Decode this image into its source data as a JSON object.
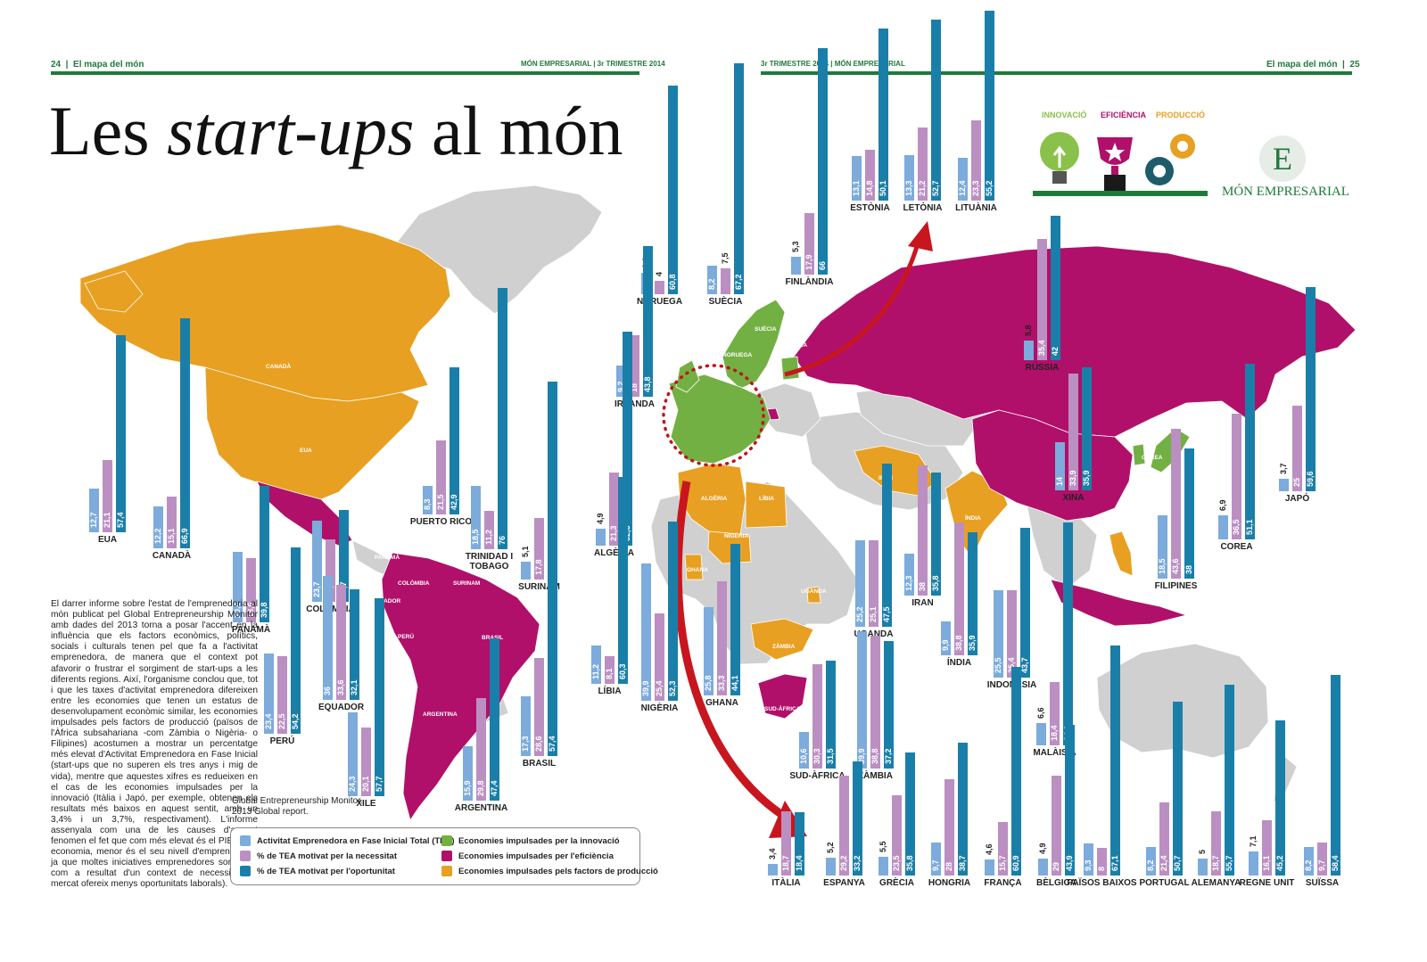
{
  "header": {
    "left_page": "24",
    "left_section": "El mapa del món",
    "left_pub": "MÓN EMPRESARIAL | 3r TRIMESTRE 2014",
    "right_pub": "3r TRIMESTRE 2014 | MÓN EMPRESARIAL",
    "right_section": "El mapa del món",
    "right_page": "25"
  },
  "title": {
    "pre": "Les ",
    "italic": "start-ups",
    "post": " al món"
  },
  "icons": {
    "innovation": "INNOVACIÓ",
    "efficiency": "EFICIÈNCIA",
    "production": "PRODUCCIÓ"
  },
  "brand": {
    "letter": "E",
    "name": "MÓN EMPRESARIAL"
  },
  "colors": {
    "tea": "#7cabdc",
    "necessity": "#bb8fc2",
    "opportunity": "#1a7fa8",
    "innovation": "#72b043",
    "efficiency": "#b0106a",
    "production": "#e8a022",
    "other": "#d0d0d0",
    "accent": "#1f7a3a"
  },
  "article": "El darrer informe sobre l'estat de l'emprenedoria al món publicat pel Global Entrepreneurship Monitor amb dades del 2013 torna a posar l'accent en la influència que els factors econòmics, polítics, socials i culturals tenen pel que fa a l'activitat emprenedora, de manera que el context pot afavorir o frustrar el sorgiment de start-ups a les diferents regions. Així, l'organisme conclou que, tot i que les taxes d'activitat emprenedora difereixen entre les economies que tenen un estatus de desenvolupament econòmic similar, les economies impulsades pels factors de producció (països de l'Àfrica subsahariana -com Zàmbia o Nigèria- o Filipines) acostumen a mostrar un percentatge més elevat d'Activitat Emprenedora en Fase Inicial (start-ups que no superen els tres anys i mig de vida), mentre que aquestes xifres es redueixen en el cas de les economies impulsades per la innovació (Itàlia i Japó, per exemple, obtenen els resultats més baixos en aquest sentit, amb un 3,4% i un 3,7%, respectivament). L'informe assenyala com una de les causes d'aquest fenomen el fet que com més elevat és el PIB d'una economia, menor és el seu nivell d'emprenedoria, ja que moltes iniciatives emprenedores sorgeixen com a resultat d'un context de necessitat (el mercat ofereix menys oportunitats laborals).",
  "source": [
    "Global Entrepreneurship Monitor.",
    "2013 Global report."
  ],
  "legend": [
    {
      "label": "Activitat Emprenedora en Fase Inicial Total (TEA)",
      "color": "#7cabdc"
    },
    {
      "label": "% de TEA motivat per la necessitat",
      "color": "#bb8fc2"
    },
    {
      "label": "% de TEA motivat per l'oportunitat",
      "color": "#1a7fa8"
    },
    {
      "label": "Economies impulsades per la innovació",
      "color": "#72b043"
    },
    {
      "label": "Economies impulsades per l'eficiència",
      "color": "#b0106a"
    },
    {
      "label": "Economies impulsades pels factors de producció",
      "color": "#e8a022"
    }
  ],
  "map_labels": [
    "CANADÀ",
    "EUA",
    "PANAMÀ",
    "COLÒMBIA",
    "SURINAM",
    "EQUADOR",
    "PERÚ",
    "BRASIL",
    "XILE",
    "ARGENTINA",
    "SUÈCIA",
    "NORUEGA",
    "FINLÀNDIA",
    "ALGÈRIA",
    "LÍBIA",
    "NIGÈRIA",
    "GHANA",
    "UGANDA",
    "ZÀMBIA",
    "SUD-ÀFRICA",
    "IRAN",
    "ÍNDIA",
    "COREA",
    "JAPÓ"
  ],
  "chart_data": {
    "type": "bar",
    "series": [
      {
        "name": "Activitat Emprenedora en Fase Inicial Total (TEA)"
      },
      {
        "name": "% de TEA motivat per la necessitat"
      },
      {
        "name": "% de TEA motivat per l'oportunitat"
      }
    ],
    "countries": [
      {
        "name": "EUA",
        "values": [
          12.7,
          21.1,
          57.4
        ],
        "labels": [
          "12,7",
          "21,1",
          "57,4"
        ]
      },
      {
        "name": "CANADÀ",
        "values": [
          12.2,
          15.1,
          66.9
        ],
        "labels": [
          "12,2",
          "15,1",
          "66,9"
        ]
      },
      {
        "name": "PUERTO RICO",
        "values": [
          8.3,
          21.5,
          42.9
        ],
        "labels": [
          "8,3",
          "21,5",
          "42,9"
        ]
      },
      {
        "name": "TRINIDAD I TOBAGO",
        "values": [
          18.5,
          11.2,
          76
        ],
        "labels": [
          "18,5",
          "11,2",
          "76"
        ]
      },
      {
        "name": "SURINAM",
        "values": [
          5.1,
          17.8,
          57.6
        ],
        "labels": [
          "5,1",
          "17,8",
          "57,6"
        ]
      },
      {
        "name": "PANAMÀ",
        "values": [
          20.6,
          18.6,
          39.8
        ],
        "labels": [
          "20,6",
          "18,6",
          "39,8"
        ]
      },
      {
        "name": "COLÒMBIA",
        "values": [
          23.7,
          18.1,
          26.7
        ],
        "labels": [
          "23,7",
          "18,1",
          "26,7"
        ]
      },
      {
        "name": "EQUADOR",
        "values": [
          36,
          33.6,
          32.1
        ],
        "labels": [
          "36",
          "33,6",
          "32,1"
        ]
      },
      {
        "name": "PERÚ",
        "values": [
          23.4,
          22.5,
          54.2
        ],
        "labels": [
          "23,4",
          "22,5",
          "54,2"
        ]
      },
      {
        "name": "BRASIL",
        "values": [
          17.3,
          28.6,
          57.4
        ],
        "labels": [
          "17,3",
          "28,6",
          "57,4"
        ]
      },
      {
        "name": "XILE",
        "values": [
          24.3,
          20.1,
          57.7
        ],
        "labels": [
          "24,3",
          "20,1",
          "57,7"
        ]
      },
      {
        "name": "ARGENTINA",
        "values": [
          15.9,
          29.8,
          47.4
        ],
        "labels": [
          "15,9",
          "29,8",
          "47,4"
        ]
      },
      {
        "name": "NORUEGA",
        "values": [
          6.3,
          4,
          60.8
        ],
        "labels": [
          "6,3",
          "4",
          "60,8"
        ]
      },
      {
        "name": "SUÈCIA",
        "values": [
          8.2,
          7.5,
          67.2
        ],
        "labels": [
          "8,2",
          "7,5",
          "67,2"
        ]
      },
      {
        "name": "FINLÀNDIA",
        "values": [
          5.3,
          17.9,
          66
        ],
        "labels": [
          "5,3",
          "17,9",
          "66"
        ]
      },
      {
        "name": "ESTÒNIA",
        "values": [
          13.1,
          14.8,
          50.1
        ],
        "labels": [
          "13,1",
          "14,8",
          "50,1"
        ]
      },
      {
        "name": "LETÒNIA",
        "values": [
          13.3,
          21.2,
          52.7
        ],
        "labels": [
          "13,3",
          "21,2",
          "52,7"
        ]
      },
      {
        "name": "LITUÀNIA",
        "values": [
          12.4,
          23.3,
          55.2
        ],
        "labels": [
          "12,4",
          "23,3",
          "55,2"
        ]
      },
      {
        "name": "IRLANDA",
        "values": [
          9.2,
          18,
          43.8
        ],
        "labels": [
          "9,2",
          "18",
          "43,8"
        ]
      },
      {
        "name": "RÚSSIA",
        "values": [
          5.8,
          35.4,
          42
        ],
        "labels": [
          "5,8",
          "35,4",
          "42"
        ]
      },
      {
        "name": "ALGÈRIA",
        "values": [
          4.9,
          21.3,
          62.3
        ],
        "labels": [
          "4,9",
          "21,3",
          "62,3"
        ]
      },
      {
        "name": "LÍBIA",
        "values": [
          11.2,
          8.1,
          60.3
        ],
        "labels": [
          "11,2",
          "8,1",
          "60,3"
        ]
      },
      {
        "name": "NIGÈRIA",
        "values": [
          39.9,
          25.4,
          52.3
        ],
        "labels": [
          "39,9",
          "25,4",
          "52,3"
        ]
      },
      {
        "name": "GHANA",
        "values": [
          25.8,
          33.3,
          44.1
        ],
        "labels": [
          "25,8",
          "33,3",
          "44,1"
        ]
      },
      {
        "name": "UGANDA",
        "values": [
          25.2,
          25.1,
          47.5
        ],
        "labels": [
          "25,2",
          "25,1",
          "47,5"
        ]
      },
      {
        "name": "IRAN",
        "values": [
          12.3,
          38,
          35.8
        ],
        "labels": [
          "12,3",
          "38",
          "35,8"
        ]
      },
      {
        "name": "ÍNDIA",
        "values": [
          9.9,
          38.8,
          35.9
        ],
        "labels": [
          "9,9",
          "38,8",
          "35,9"
        ]
      },
      {
        "name": "INDONÈSIA",
        "values": [
          25.5,
          25.4,
          43.7
        ],
        "labels": [
          "25,5",
          "25,4",
          "43,7"
        ]
      },
      {
        "name": "XINA",
        "values": [
          14,
          33.9,
          35.9
        ],
        "labels": [
          "14",
          "33,9",
          "35,9"
        ]
      },
      {
        "name": "FILIPINES",
        "values": [
          18.5,
          43.6,
          38
        ],
        "labels": [
          "18,5",
          "43,6",
          "38"
        ]
      },
      {
        "name": "COREA",
        "values": [
          6.9,
          36.5,
          51.1
        ],
        "labels": [
          "6,9",
          "36,5",
          "51,1"
        ]
      },
      {
        "name": "JAPÓ",
        "values": [
          3.7,
          25,
          59.6
        ],
        "labels": [
          "3,7",
          "25",
          "59,6"
        ]
      },
      {
        "name": "MALÀISIA",
        "values": [
          6.6,
          18.4,
          64.9
        ],
        "labels": [
          "6,6",
          "18,4",
          "64,9"
        ]
      },
      {
        "name": "SUD-ÀFRICA",
        "values": [
          10.6,
          30.3,
          31.5
        ],
        "labels": [
          "10,6",
          "30,3",
          "31,5"
        ]
      },
      {
        "name": "ZÀMBIA",
        "values": [
          39.9,
          38.8,
          37.2
        ],
        "labels": [
          "39,9",
          "38,8",
          "37,2"
        ]
      },
      {
        "name": "ITÀLIA",
        "values": [
          3.4,
          18.7,
          18.4
        ],
        "labels": [
          "3,4",
          "18,7",
          "18,4"
        ]
      },
      {
        "name": "ESPANYA",
        "values": [
          5.2,
          29.2,
          33.2
        ],
        "labels": [
          "5,2",
          "29,2",
          "33,2"
        ]
      },
      {
        "name": "GRÈCIA",
        "values": [
          5.5,
          23.5,
          35.8
        ],
        "labels": [
          "5,5",
          "23,5",
          "35,8"
        ]
      },
      {
        "name": "HONGRIA",
        "values": [
          9.7,
          28,
          38.7
        ],
        "labels": [
          "9,7",
          "28",
          "38,7"
        ]
      },
      {
        "name": "FRANÇA",
        "values": [
          4.6,
          15.7,
          60.9
        ],
        "labels": [
          "4,6",
          "15,7",
          "60,9"
        ]
      },
      {
        "name": "BÈLGICA",
        "values": [
          4.9,
          29,
          43.9
        ],
        "labels": [
          "4,9",
          "29",
          "43,9"
        ]
      },
      {
        "name": "PAÏSOS BAIXOS",
        "values": [
          9.3,
          8,
          67.1
        ],
        "labels": [
          "9,3",
          "8",
          "67,1"
        ]
      },
      {
        "name": "PORTUGAL",
        "values": [
          8.2,
          21.4,
          50.7
        ],
        "labels": [
          "8,2",
          "21,4",
          "50,7"
        ]
      },
      {
        "name": "ALEMANYA",
        "values": [
          5,
          18.7,
          55.7
        ],
        "labels": [
          "5",
          "18,7",
          "55,7"
        ]
      },
      {
        "name": "REGNE UNIT",
        "values": [
          7.1,
          16.1,
          45.2
        ],
        "labels": [
          "7,1",
          "16,1",
          "45,2"
        ]
      },
      {
        "name": "SUÏSSA",
        "values": [
          8.2,
          9.7,
          58.4
        ],
        "labels": [
          "8,2",
          "9,7",
          "58,4"
        ]
      }
    ]
  }
}
